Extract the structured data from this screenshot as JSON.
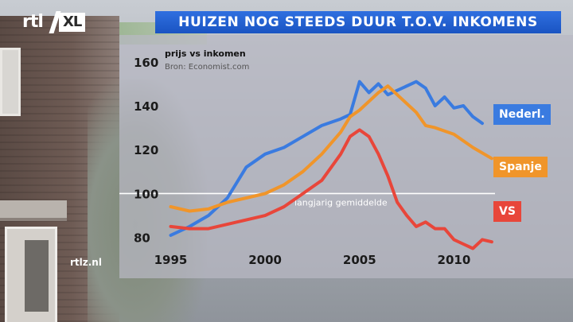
{
  "header": {
    "title": "HUIZEN NOG STEEDS DUUR T.O.V. INKOMENS",
    "logo_text": "rtl",
    "logo_badge": "XL"
  },
  "footer": {
    "site": "rtlz.nl"
  },
  "chart_data": {
    "type": "line",
    "title": "prijs vs inkomen",
    "subtitle": "Bron: Economist.com",
    "ylim": [
      73,
      165
    ],
    "xlim": [
      1994.6,
      2012.3
    ],
    "yticks": [
      "80",
      "100",
      "120",
      "140",
      "160"
    ],
    "xticks": [
      "1995",
      "2000",
      "2005",
      "2010"
    ],
    "reference_line": {
      "value": 100,
      "label": "langjarig gemiddelde"
    },
    "series": [
      {
        "name": "Nederl.",
        "color": "#3a7be0",
        "points": [
          [
            1995,
            81
          ],
          [
            1996,
            85
          ],
          [
            1997,
            90
          ],
          [
            1998,
            98
          ],
          [
            1999,
            112
          ],
          [
            2000,
            118
          ],
          [
            2001,
            121
          ],
          [
            2002,
            126
          ],
          [
            2003,
            131
          ],
          [
            2004,
            134
          ],
          [
            2004.5,
            136
          ],
          [
            2005,
            151
          ],
          [
            2005.5,
            146
          ],
          [
            2006,
            150
          ],
          [
            2006.5,
            145
          ],
          [
            2007,
            147
          ],
          [
            2008,
            151
          ],
          [
            2008.5,
            148
          ],
          [
            2009,
            140
          ],
          [
            2009.5,
            144
          ],
          [
            2010,
            139
          ],
          [
            2010.5,
            140
          ],
          [
            2011,
            135
          ],
          [
            2011.5,
            132
          ]
        ]
      },
      {
        "name": "Spanje",
        "color": "#f0952a",
        "points": [
          [
            1995,
            94
          ],
          [
            1996,
            92
          ],
          [
            1997,
            93
          ],
          [
            1998,
            96
          ],
          [
            1999,
            98
          ],
          [
            2000,
            100
          ],
          [
            2001,
            104
          ],
          [
            2002,
            110
          ],
          [
            2003,
            118
          ],
          [
            2004,
            128
          ],
          [
            2004.5,
            135
          ],
          [
            2005,
            138
          ],
          [
            2006,
            146
          ],
          [
            2006.5,
            149
          ],
          [
            2007,
            145
          ],
          [
            2008,
            137
          ],
          [
            2008.5,
            131
          ],
          [
            2009,
            130
          ],
          [
            2010,
            127
          ],
          [
            2011,
            121
          ],
          [
            2012,
            116
          ]
        ]
      },
      {
        "name": "VS",
        "color": "#e8463a",
        "points": [
          [
            1995,
            85
          ],
          [
            1996,
            84
          ],
          [
            1997,
            84
          ],
          [
            1998,
            86
          ],
          [
            1999,
            88
          ],
          [
            2000,
            90
          ],
          [
            2001,
            94
          ],
          [
            2002,
            100
          ],
          [
            2003,
            106
          ],
          [
            2004,
            118
          ],
          [
            2004.5,
            126
          ],
          [
            2005,
            129
          ],
          [
            2005.5,
            126
          ],
          [
            2006,
            118
          ],
          [
            2006.5,
            108
          ],
          [
            2007,
            96
          ],
          [
            2007.5,
            90
          ],
          [
            2008,
            85
          ],
          [
            2008.5,
            87
          ],
          [
            2009,
            84
          ],
          [
            2009.5,
            84
          ],
          [
            2010,
            79
          ],
          [
            2010.5,
            77
          ],
          [
            2011,
            75
          ],
          [
            2011.5,
            79
          ],
          [
            2012,
            78
          ]
        ]
      }
    ],
    "legend": "right, next to line ends",
    "grid": false
  }
}
